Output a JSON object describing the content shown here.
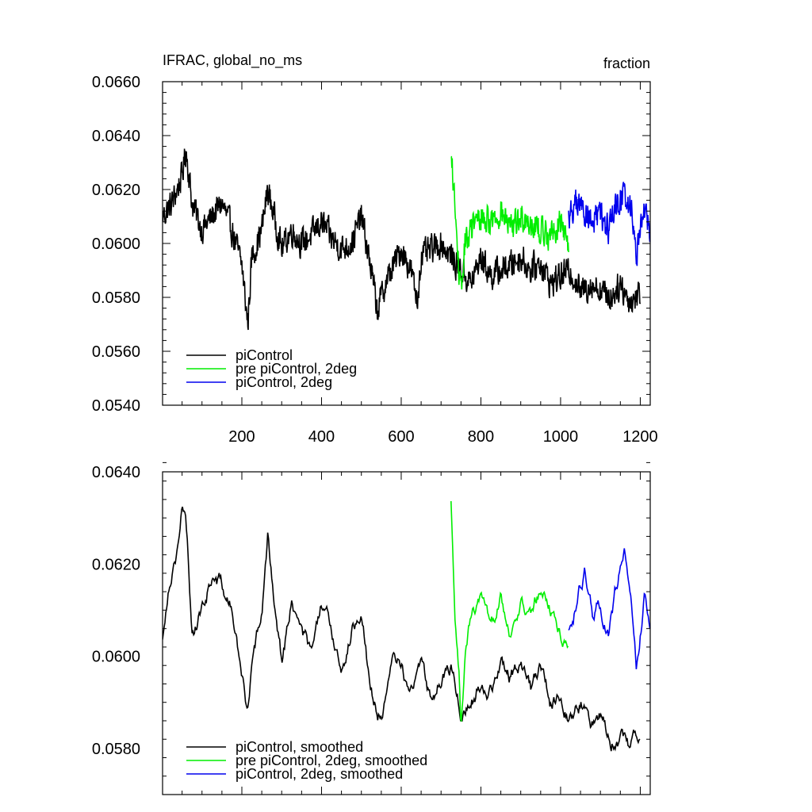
{
  "chart_data": [
    {
      "type": "line",
      "title_left": "IFRAC, global_no_ms",
      "title_right": "fraction",
      "xlim": [
        1,
        1225
      ],
      "ylim": [
        0.054,
        0.066
      ],
      "x_ticks": [
        200,
        400,
        600,
        800,
        1000,
        1200
      ],
      "x_tick_labels": [
        "200",
        "400",
        "600",
        "800",
        "1000",
        "1200"
      ],
      "y_ticks": [
        0.054,
        0.056,
        0.058,
        0.06,
        0.062,
        0.064,
        0.066
      ],
      "y_tick_labels": [
        "0.0540",
        "0.0560",
        "0.0580",
        "0.0600",
        "0.0620",
        "0.0640",
        "0.0660"
      ],
      "grid": false,
      "legend_position": "bottom-left",
      "series": [
        {
          "name": "piControl",
          "color": "#000000",
          "x": [
            1,
            25,
            50,
            60,
            75,
            100,
            125,
            150,
            175,
            200,
            215,
            225,
            250,
            265,
            300,
            325,
            350,
            375,
            400,
            425,
            450,
            475,
            500,
            525,
            540,
            560,
            600,
            625,
            640,
            650,
            700,
            725,
            750,
            775,
            800,
            825,
            850,
            875,
            900,
            925,
            950,
            975,
            1000,
            1025,
            1050,
            1075,
            1100,
            1125,
            1150,
            1175,
            1200
          ],
          "y": [
            0.061,
            0.0615,
            0.0625,
            0.0635,
            0.0615,
            0.0605,
            0.061,
            0.0615,
            0.0605,
            0.0592,
            0.057,
            0.0595,
            0.0605,
            0.062,
            0.0598,
            0.0605,
            0.06,
            0.0603,
            0.0608,
            0.0602,
            0.0598,
            0.06,
            0.061,
            0.059,
            0.0575,
            0.0585,
            0.0598,
            0.059,
            0.0578,
            0.0595,
            0.06,
            0.0595,
            0.059,
            0.0585,
            0.0595,
            0.0588,
            0.059,
            0.0592,
            0.0595,
            0.059,
            0.0593,
            0.0585,
            0.0588,
            0.059,
            0.0582,
            0.0585,
            0.0583,
            0.058,
            0.0585,
            0.0578,
            0.0582
          ]
        },
        {
          "name": "pre piControl, 2deg",
          "color": "#00ee00",
          "x": [
            725,
            730,
            740,
            750,
            760,
            775,
            800,
            825,
            850,
            875,
            900,
            925,
            950,
            975,
            1000,
            1020
          ],
          "y": [
            0.063,
            0.0625,
            0.06,
            0.058,
            0.06,
            0.0605,
            0.061,
            0.0608,
            0.0612,
            0.0605,
            0.061,
            0.0608,
            0.0605,
            0.0603,
            0.0608,
            0.06
          ]
        },
        {
          "name": "piControl, 2deg",
          "color": "#0000ee",
          "x": [
            1020,
            1040,
            1060,
            1080,
            1100,
            1120,
            1140,
            1160,
            1180,
            1190,
            1200,
            1210,
            1225
          ],
          "y": [
            0.061,
            0.0615,
            0.0612,
            0.0608,
            0.061,
            0.0605,
            0.0615,
            0.0618,
            0.0612,
            0.0595,
            0.0608,
            0.0612,
            0.0605
          ]
        }
      ]
    },
    {
      "type": "line",
      "xlim": [
        1,
        1225
      ],
      "ylim": [
        0.057,
        0.064
      ],
      "x_ticks": [
        200,
        400,
        600,
        800,
        1000,
        1200
      ],
      "y_ticks": [
        0.058,
        0.06,
        0.062,
        0.064
      ],
      "y_tick_labels": [
        "0.0580",
        "0.0600",
        "0.0620",
        "0.0640"
      ],
      "grid": false,
      "legend_position": "bottom-left",
      "series": [
        {
          "name": "piControl, smoothed",
          "color": "#000000",
          "x": [
            1,
            10,
            20,
            40,
            50,
            60,
            75,
            100,
            125,
            150,
            175,
            200,
            215,
            225,
            250,
            265,
            300,
            325,
            350,
            375,
            400,
            425,
            450,
            475,
            500,
            520,
            540,
            560,
            580,
            600,
            625,
            650,
            675,
            700,
            725,
            750,
            775,
            800,
            825,
            850,
            875,
            900,
            925,
            950,
            975,
            1000,
            1025,
            1050,
            1075,
            1100,
            1125,
            1150,
            1175,
            1200
          ],
          "y": [
            0.0603,
            0.0612,
            0.0618,
            0.0625,
            0.0632,
            0.0628,
            0.0605,
            0.061,
            0.0618,
            0.0615,
            0.061,
            0.0595,
            0.0588,
            0.06,
            0.0608,
            0.0625,
            0.06,
            0.0612,
            0.0605,
            0.06,
            0.061,
            0.0605,
            0.0598,
            0.0605,
            0.0612,
            0.0595,
            0.0588,
            0.059,
            0.0598,
            0.0598,
            0.0592,
            0.06,
            0.059,
            0.0595,
            0.0598,
            0.0588,
            0.059,
            0.0595,
            0.0593,
            0.0597,
            0.0595,
            0.06,
            0.0593,
            0.0598,
            0.059,
            0.0592,
            0.0588,
            0.059,
            0.0585,
            0.0588,
            0.0583,
            0.0582,
            0.058,
            0.0585
          ]
        },
        {
          "name": "pre piControl, 2deg, smoothed",
          "color": "#00ee00",
          "x": [
            725,
            735,
            745,
            750,
            760,
            775,
            800,
            825,
            850,
            875,
            900,
            925,
            950,
            975,
            1000,
            1020
          ],
          "y": [
            0.0633,
            0.0605,
            0.0595,
            0.0582,
            0.0598,
            0.0608,
            0.0612,
            0.0603,
            0.0615,
            0.0605,
            0.0612,
            0.0608,
            0.0615,
            0.061,
            0.0605,
            0.0603
          ]
        },
        {
          "name": "piControl, 2deg, smoothed",
          "color": "#0000ee",
          "x": [
            1020,
            1040,
            1060,
            1080,
            1100,
            1120,
            1140,
            1160,
            1175,
            1190,
            1200,
            1210,
            1225
          ],
          "y": [
            0.0605,
            0.0612,
            0.0618,
            0.0608,
            0.0612,
            0.0605,
            0.0615,
            0.0622,
            0.0615,
            0.0598,
            0.0605,
            0.0612,
            0.0605
          ]
        }
      ]
    }
  ]
}
